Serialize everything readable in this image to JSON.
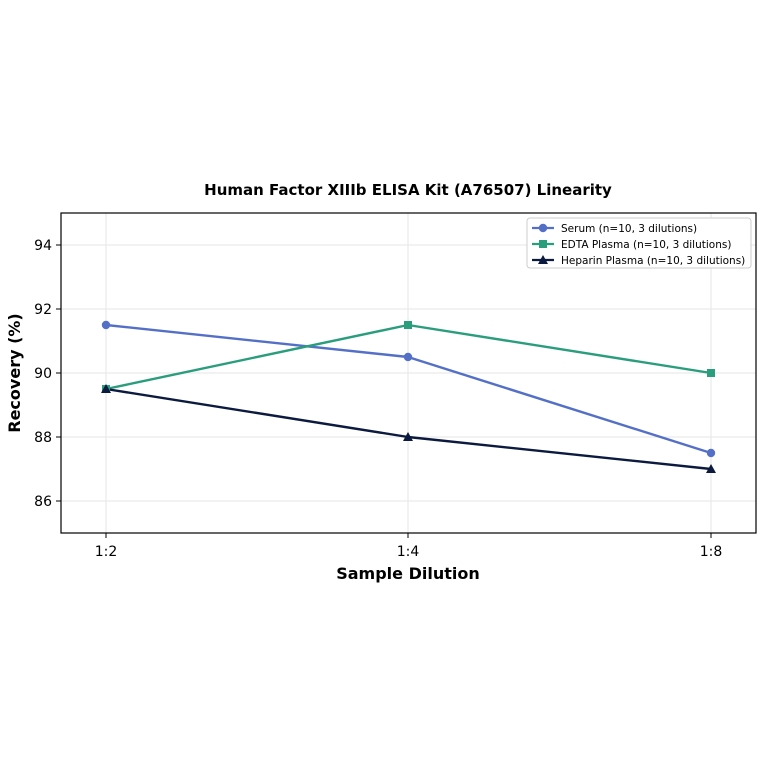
{
  "chart_data": {
    "type": "line",
    "title": "Human Factor XIIIb ELISA Kit (A76507) Linearity",
    "xlabel": "Sample Dilution",
    "ylabel": "Recovery (%)",
    "categories": [
      "1:2",
      "1:4",
      "1:8"
    ],
    "ylim": [
      85,
      95
    ],
    "yticks": [
      86,
      88,
      90,
      92,
      94
    ],
    "grid": true,
    "legend_position": "top-right",
    "series": [
      {
        "name": "Serum (n=10, 3 dilutions)",
        "values": [
          91.5,
          90.5,
          87.5
        ],
        "color": "#5470c6",
        "marker": "circle"
      },
      {
        "name": "EDTA Plasma (n=10, 3 dilutions)",
        "values": [
          89.5,
          91.5,
          90.0
        ],
        "color": "#2a9d7c",
        "marker": "square"
      },
      {
        "name": "Heparin Plasma (n=10, 3 dilutions)",
        "values": [
          89.5,
          88.0,
          87.0
        ],
        "color": "#0b1a3e",
        "marker": "triangle"
      }
    ]
  }
}
